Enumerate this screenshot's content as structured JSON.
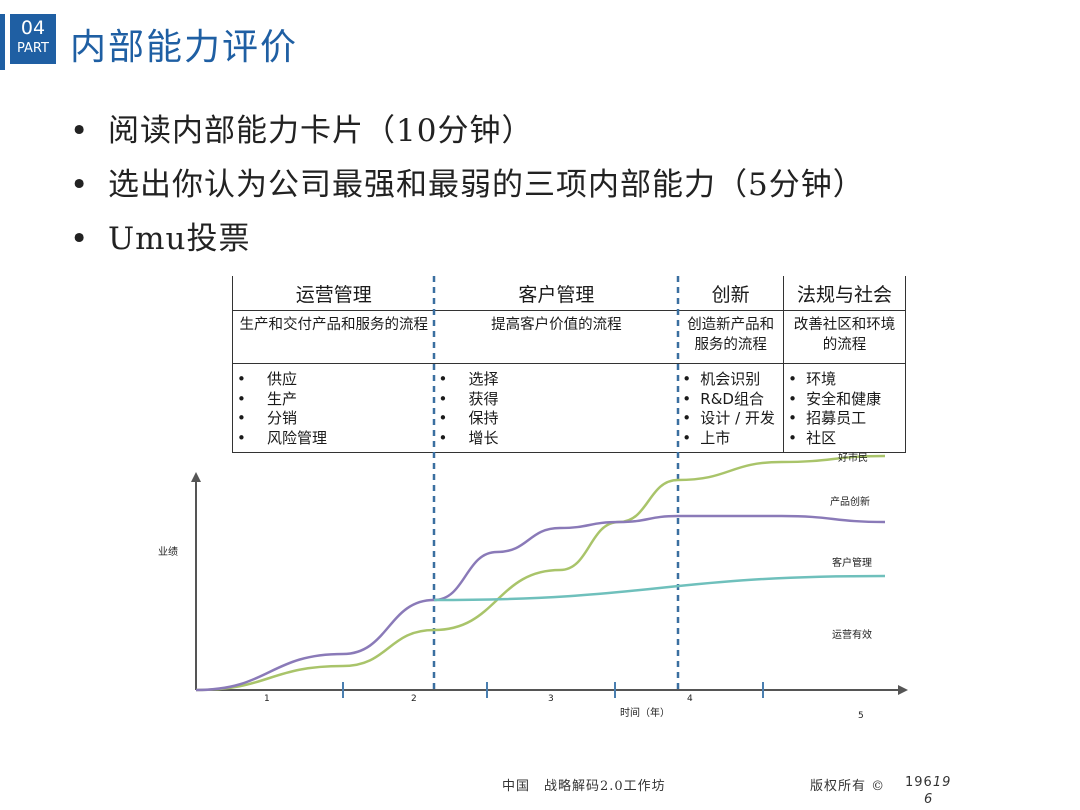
{
  "header": {
    "part_num": "04",
    "part_label": "PART",
    "title": "内部能力评价",
    "accent": "#1f5fa3"
  },
  "bullets": [
    "阅读内部能力卡片（10分钟）",
    "选出你认为公司最强和最弱的三项内部能力（5分钟）",
    "Umu投票"
  ],
  "table": {
    "columns": [
      {
        "title": "运营管理",
        "desc": "生产和交付产品和服务的流程",
        "items": [
          "供应",
          "生产",
          "分销",
          "风险管理"
        ]
      },
      {
        "title": "客户管理",
        "desc": "提高客户价值的流程",
        "items": [
          "选择",
          "获得",
          "保持",
          "增长"
        ]
      },
      {
        "title": "创新",
        "desc": "创造新产品和服务的流程",
        "items": [
          "机会识别",
          "R&D组合",
          "设计 / 开发",
          "上市"
        ]
      },
      {
        "title": "法规与社会",
        "desc": "改善社区和环境的流程",
        "items": [
          "环境",
          "安全和健康",
          "招募员工",
          "社区"
        ]
      }
    ]
  },
  "chart_data": {
    "type": "line",
    "ylabel": "业绩",
    "xlabel": "时间（年）",
    "ticks": [
      "1",
      "2",
      "3",
      "4",
      "5"
    ],
    "series": [
      {
        "name": "好市民",
        "color": "#a9c46a",
        "x": [
          0,
          1,
          2,
          3,
          3.5,
          4,
          4.5,
          5
        ],
        "y": [
          0,
          8,
          20,
          40,
          56,
          70,
          76,
          78
        ]
      },
      {
        "name": "产品创新",
        "color": "#8a7ab8",
        "x": [
          0,
          1,
          2,
          2.5,
          3,
          3.5,
          4,
          4.5,
          5
        ],
        "y": [
          0,
          12,
          30,
          46,
          54,
          56,
          58,
          58,
          56
        ]
      },
      {
        "name": "客户管理",
        "color": "#6fc0bc",
        "x": [
          2,
          5
        ],
        "y": [
          30,
          38
        ]
      },
      {
        "name": "运营有效"
      }
    ]
  },
  "footer": {
    "left": "中国　战略解码2.0工作坊",
    "right": "版权所有 ©",
    "page": "196",
    "page_hand": "19",
    "page_hand2": "6"
  }
}
